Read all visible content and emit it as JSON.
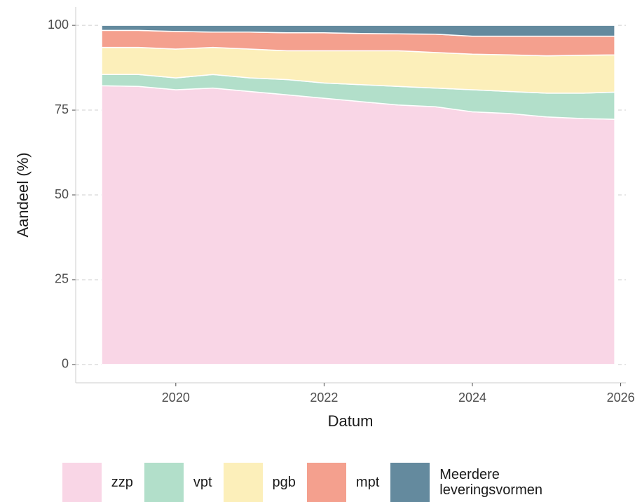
{
  "chart_data": {
    "type": "area",
    "stacked": true,
    "x_label": "Datum",
    "y_label": "Aandeel (%)",
    "x": [
      2019.0,
      2019.5,
      2020.0,
      2020.5,
      2021.0,
      2021.5,
      2022.0,
      2022.5,
      2023.0,
      2023.5,
      2024.0,
      2024.5,
      2025.0,
      2025.5,
      2025.92
    ],
    "series": [
      {
        "name": "zzp",
        "color": "#f9d6e6",
        "values": [
          82.2,
          82,
          81,
          81.5,
          80.5,
          79.5,
          78.5,
          77.5,
          76.5,
          76,
          74.5,
          74,
          73,
          72.5,
          72.3
        ]
      },
      {
        "name": "vpt",
        "color": "#b2dfca",
        "values": [
          3.3,
          3.5,
          3.5,
          4,
          4,
          4.5,
          4.5,
          5,
          5.5,
          5.5,
          6.5,
          6.5,
          7,
          7.5,
          8
        ]
      },
      {
        "name": "pgb",
        "color": "#fcefba",
        "values": [
          8,
          8,
          8.5,
          8,
          8.5,
          8.5,
          9.5,
          10,
          10.5,
          10.5,
          10.5,
          10.8,
          11,
          11.2,
          11
        ]
      },
      {
        "name": "mpt",
        "color": "#f4a08e",
        "values": [
          5,
          5,
          5.2,
          4.5,
          5,
          5.3,
          5.3,
          5.1,
          5,
          5.4,
          5.3,
          5.5,
          5.8,
          5.6,
          5.5
        ]
      },
      {
        "name": "Meerdere leveringsvormen",
        "color": "#648a9e",
        "values": [
          1.5,
          1.5,
          1.8,
          2,
          2,
          2.2,
          2.2,
          2.4,
          2.5,
          2.6,
          3.2,
          3.2,
          3.2,
          3.2,
          3.2
        ]
      }
    ],
    "xlim": [
      2018.65,
      2026.07
    ],
    "xticks": [
      2020,
      2022,
      2024,
      2026
    ],
    "ylim": [
      -5.4,
      105.4
    ],
    "yticks": [
      0,
      25,
      50,
      75,
      100
    ],
    "grid": true
  }
}
